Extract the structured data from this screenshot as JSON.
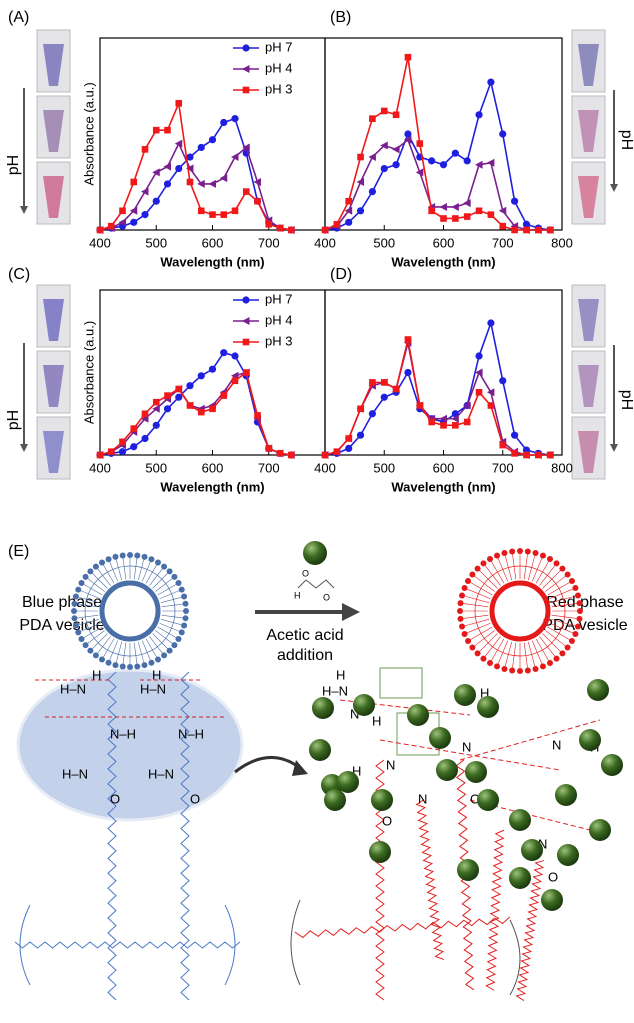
{
  "chart_data": [
    {
      "type": "line",
      "panel_label": "(A)",
      "xlabel": "Wavelength (nm)",
      "ylabel": "Absorbance (a.u.)",
      "xlim": [
        400,
        800
      ],
      "xticks": [
        400,
        500,
        600,
        700
      ],
      "ylim": [
        0,
        1
      ],
      "legend": "upper right",
      "x": [
        400,
        420,
        440,
        460,
        480,
        500,
        520,
        540,
        560,
        580,
        600,
        620,
        640,
        660,
        680,
        700,
        720,
        740
      ],
      "series": [
        {
          "name": "pH 7",
          "color": "#1f1fe0",
          "marker": "circle",
          "values": [
            0,
            0.01,
            0.02,
            0.04,
            0.08,
            0.15,
            0.24,
            0.32,
            0.38,
            0.43,
            0.47,
            0.56,
            0.58,
            0.4,
            0.15,
            0.04,
            0.01,
            0
          ]
        },
        {
          "name": "pH 4",
          "color": "#7a1f8f",
          "marker": "triangle",
          "values": [
            0,
            0.01,
            0.04,
            0.1,
            0.2,
            0.3,
            0.33,
            0.45,
            0.32,
            0.24,
            0.24,
            0.27,
            0.38,
            0.43,
            0.25,
            0.05,
            0.01,
            0
          ]
        },
        {
          "name": "pH 3",
          "color": "#f01818",
          "marker": "square",
          "values": [
            0,
            0.02,
            0.1,
            0.25,
            0.42,
            0.52,
            0.52,
            0.66,
            0.25,
            0.1,
            0.08,
            0.08,
            0.1,
            0.2,
            0.15,
            0.03,
            0.01,
            0
          ]
        }
      ]
    },
    {
      "type": "line",
      "panel_label": "(B)",
      "xlabel": "Wavelength (nm)",
      "xlim": [
        400,
        800
      ],
      "xticks": [
        400,
        500,
        600,
        700,
        800
      ],
      "ylim": [
        0,
        1
      ],
      "x": [
        400,
        420,
        440,
        460,
        480,
        500,
        520,
        540,
        560,
        580,
        600,
        620,
        640,
        660,
        680,
        700,
        720,
        740,
        760,
        780
      ],
      "series": [
        {
          "color": "#1f1fe0",
          "marker": "circle",
          "values": [
            0,
            0.01,
            0.04,
            0.1,
            0.2,
            0.32,
            0.34,
            0.5,
            0.38,
            0.36,
            0.34,
            0.4,
            0.36,
            0.6,
            0.77,
            0.5,
            0.15,
            0.03,
            0.01,
            0
          ]
        },
        {
          "color": "#7a1f8f",
          "marker": "triangle",
          "values": [
            0,
            0.02,
            0.1,
            0.25,
            0.38,
            0.44,
            0.42,
            0.47,
            0.3,
            0.12,
            0.12,
            0.12,
            0.14,
            0.34,
            0.35,
            0.1,
            0.02,
            0,
            0,
            0
          ]
        },
        {
          "color": "#f01818",
          "marker": "square",
          "values": [
            0,
            0.03,
            0.15,
            0.38,
            0.58,
            0.62,
            0.6,
            0.9,
            0.45,
            0.1,
            0.06,
            0.06,
            0.07,
            0.1,
            0.08,
            0.02,
            0,
            0,
            0,
            0
          ]
        }
      ]
    },
    {
      "type": "line",
      "panel_label": "(C)",
      "xlabel": "Wavelength (nm)",
      "ylabel": "Absorbance (a.u.)",
      "xlim": [
        400,
        800
      ],
      "xticks": [
        400,
        500,
        600,
        700
      ],
      "ylim": [
        0,
        1
      ],
      "legend": "upper right",
      "x": [
        400,
        420,
        440,
        460,
        480,
        500,
        520,
        540,
        560,
        580,
        600,
        620,
        640,
        660,
        680,
        700,
        720,
        740
      ],
      "series": [
        {
          "name": "pH 7",
          "color": "#1f1fe0",
          "marker": "circle",
          "values": [
            0,
            0.01,
            0.02,
            0.05,
            0.1,
            0.18,
            0.28,
            0.35,
            0.42,
            0.48,
            0.52,
            0.62,
            0.6,
            0.48,
            0.2,
            0.04,
            0.01,
            0
          ]
        },
        {
          "name": "pH 4",
          "color": "#7a1f8f",
          "marker": "triangle",
          "values": [
            0,
            0.02,
            0.06,
            0.14,
            0.22,
            0.28,
            0.34,
            0.4,
            0.3,
            0.28,
            0.3,
            0.38,
            0.48,
            0.5,
            0.22,
            0.04,
            0.01,
            0
          ]
        },
        {
          "name": "pH 3",
          "color": "#f01818",
          "marker": "square",
          "values": [
            0,
            0.02,
            0.08,
            0.16,
            0.25,
            0.32,
            0.36,
            0.4,
            0.3,
            0.26,
            0.28,
            0.36,
            0.45,
            0.5,
            0.24,
            0.04,
            0.01,
            0
          ]
        }
      ]
    },
    {
      "type": "line",
      "panel_label": "(D)",
      "xlabel": "Wavelength (nm)",
      "xlim": [
        400,
        800
      ],
      "xticks": [
        400,
        500,
        600,
        700,
        800
      ],
      "ylim": [
        0,
        1
      ],
      "x": [
        400,
        420,
        440,
        460,
        480,
        500,
        520,
        540,
        560,
        580,
        600,
        620,
        640,
        660,
        680,
        700,
        720,
        740,
        760,
        780
      ],
      "series": [
        {
          "color": "#1f1fe0",
          "marker": "circle",
          "values": [
            0,
            0.01,
            0.04,
            0.12,
            0.25,
            0.35,
            0.38,
            0.5,
            0.28,
            0.22,
            0.2,
            0.25,
            0.3,
            0.6,
            0.8,
            0.45,
            0.12,
            0.03,
            0.01,
            0
          ]
        },
        {
          "color": "#7a1f8f",
          "marker": "triangle",
          "values": [
            0,
            0.02,
            0.1,
            0.28,
            0.42,
            0.44,
            0.4,
            0.68,
            0.3,
            0.22,
            0.22,
            0.22,
            0.3,
            0.5,
            0.38,
            0.08,
            0.02,
            0,
            0,
            0
          ]
        },
        {
          "color": "#f01818",
          "marker": "square",
          "values": [
            0,
            0.02,
            0.1,
            0.28,
            0.44,
            0.44,
            0.4,
            0.7,
            0.3,
            0.2,
            0.18,
            0.18,
            0.2,
            0.38,
            0.3,
            0.06,
            0.01,
            0,
            0,
            0
          ]
        }
      ]
    }
  ],
  "vial_labels": [
    "pH",
    "pH",
    "pH",
    "pH"
  ],
  "panel_e": {
    "label": "(E)",
    "left_text": [
      "Blue phase",
      "PDA vesicle"
    ],
    "arrow_text": [
      "Acetic acid",
      "addition"
    ],
    "right_text": [
      "Red phase",
      "PDA vesicle"
    ],
    "molecule_labels": [
      "H",
      "O",
      "O"
    ],
    "left_chain_labels": [
      "H",
      "H–N",
      "H",
      "H–N",
      "N–H",
      "N–H",
      "H–N",
      "O",
      "H–N",
      "O"
    ],
    "right_chain_labels": [
      "H",
      "H–N",
      "N",
      "H",
      "N",
      "H",
      "N",
      "O",
      "N",
      "H",
      "N",
      "H",
      "O",
      "H",
      "N",
      "O"
    ]
  }
}
